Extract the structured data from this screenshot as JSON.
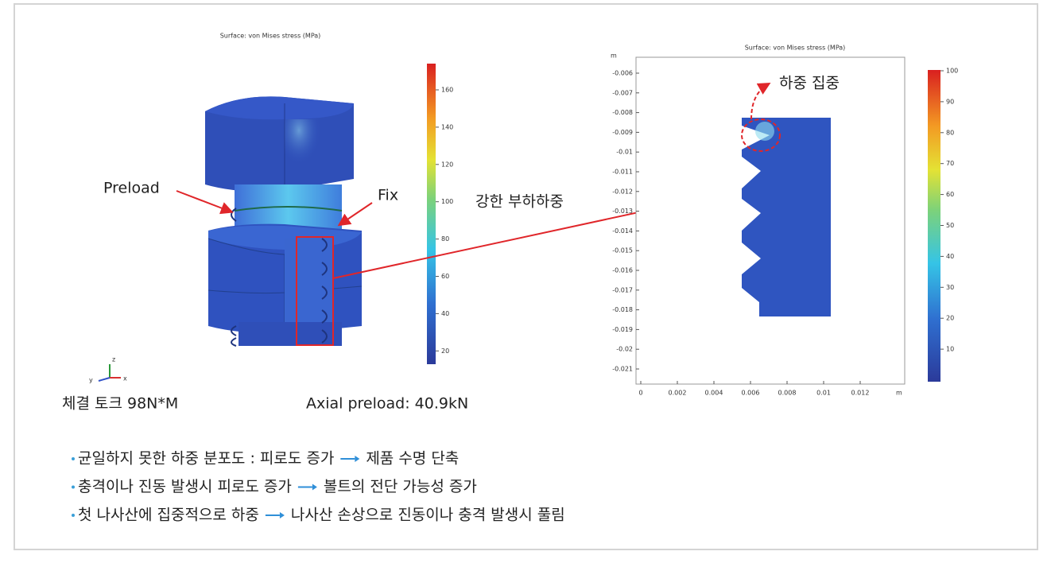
{
  "left_panel": {
    "title": "Surface: von Mises stress (MPa)",
    "colorbar_ticks": [
      "160",
      "140",
      "120",
      "100",
      "80",
      "60",
      "40",
      "20"
    ],
    "preload_label": "Preload",
    "fix_label": "Fix",
    "axis_labels": [
      "z",
      "y",
      "x"
    ],
    "torque": "체결 토크 98N*M",
    "axial_preload": "Axial preload: 40.9kN"
  },
  "callout": "강한 부하하중",
  "right_panel": {
    "title": "Surface: von Mises stress (MPa)",
    "y_unit": "m",
    "y_ticks": [
      "-0.006",
      "-0.007",
      "-0.008",
      "-0.009",
      "-0.01",
      "-0.011",
      "-0.012",
      "-0.013",
      "-0.014",
      "-0.015",
      "-0.016",
      "-0.017",
      "-0.018",
      "-0.019",
      "-0.02",
      "-0.021"
    ],
    "x_ticks": [
      "0",
      "0.002",
      "0.004",
      "0.006",
      "0.008",
      "0.01",
      "0.012"
    ],
    "x_unit": "m",
    "colorbar_ticks": [
      "100",
      "90",
      "80",
      "70",
      "60",
      "50",
      "40",
      "30",
      "20",
      "10"
    ],
    "annotation": "하중 집중"
  },
  "bullets": [
    {
      "cause": "균일하지 못한 하중 분포도 : 피로도 증가",
      "effect": "제품 수명 단축"
    },
    {
      "cause": "충격이나 진동 발생시 피로도 증가",
      "effect": "볼트의 전단 가능성 증가"
    },
    {
      "cause": "첫 나사산에 집중적으로 하중",
      "effect": "나사산 손상으로 진동이나 충격 발생시 풀림"
    }
  ]
}
